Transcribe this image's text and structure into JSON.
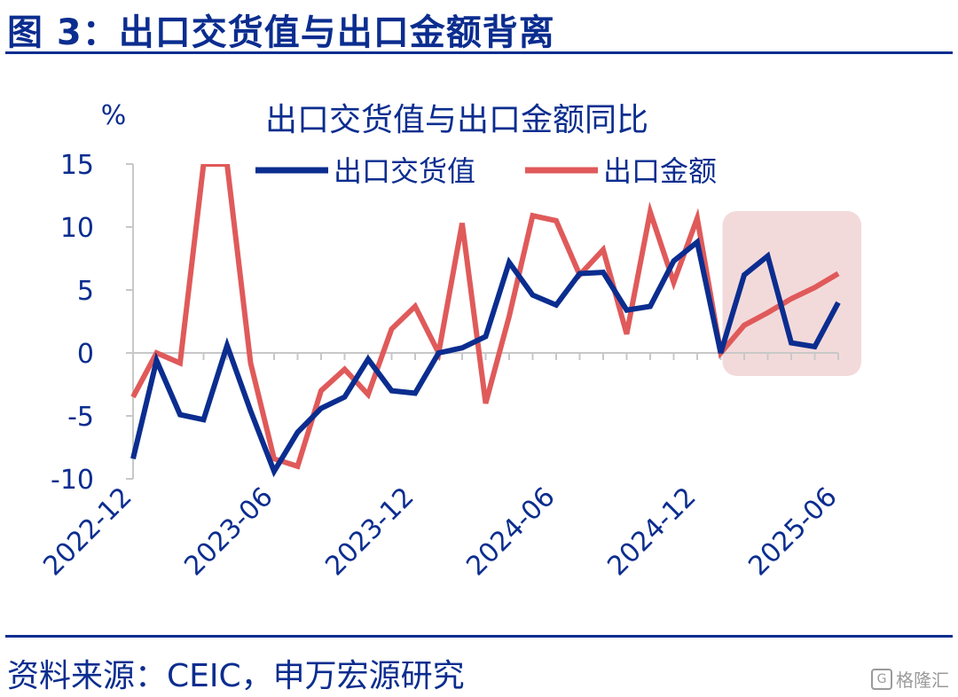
{
  "figure": {
    "title": "图 3：出口交货值与出口金额背离",
    "source": "资料来源：CEIC，申万宏源研究",
    "watermark": "格隆汇"
  },
  "colors": {
    "brand": "#0b2d8f",
    "series_delivery": "#0b2d8f",
    "series_amount": "#e05a5a",
    "highlight": "#f3dada"
  },
  "chart_data": {
    "type": "line",
    "title": "出口交货值与出口金额同比",
    "unit_label": "%",
    "ylim": [
      -10,
      15
    ],
    "yticks": [
      15,
      10,
      5,
      0,
      -5,
      -10
    ],
    "x": [
      "2022-12",
      "2023-01",
      "2023-02",
      "2023-03",
      "2023-04",
      "2023-05",
      "2023-06",
      "2023-07",
      "2023-08",
      "2023-09",
      "2023-10",
      "2023-11",
      "2023-12",
      "2024-01",
      "2024-02",
      "2024-03",
      "2024-04",
      "2024-05",
      "2024-06",
      "2024-07",
      "2024-08",
      "2024-09",
      "2024-10",
      "2024-11",
      "2024-12",
      "2025-01",
      "2025-02",
      "2025-03",
      "2025-04",
      "2025-05",
      "2025-06"
    ],
    "xticklabels": [
      "2022-12",
      "2023-06",
      "2023-12",
      "2024-06",
      "2024-12",
      "2025-06"
    ],
    "legend_position": "top",
    "grid": false,
    "highlight_range": [
      "2025-01",
      "2025-06"
    ],
    "series": [
      {
        "name": "出口交货值",
        "color": "#0b2d8f",
        "values": [
          -8.4,
          -0.6,
          -4.9,
          -5.3,
          0.6,
          -4.6,
          -9.4,
          -6.3,
          -4.4,
          -3.5,
          -0.5,
          -3.0,
          -3.2,
          0.0,
          0.4,
          1.3,
          7.2,
          4.6,
          3.8,
          6.3,
          6.4,
          3.4,
          3.7,
          7.3,
          8.8,
          0.0,
          6.2,
          7.7,
          0.8,
          0.5,
          4.0
        ]
      },
      {
        "name": "出口金额",
        "color": "#e05a5a",
        "values": [
          -3.5,
          0.0,
          -0.8,
          15.0,
          15.0,
          -0.8,
          -8.4,
          -9.0,
          -3.0,
          -1.3,
          -3.3,
          1.9,
          3.7,
          0.0,
          10.3,
          -4.0,
          2.9,
          10.9,
          10.5,
          6.2,
          8.2,
          1.5,
          11.2,
          5.6,
          10.7,
          0.0,
          2.2,
          3.2,
          4.3,
          5.2,
          6.3
        ]
      }
    ]
  }
}
